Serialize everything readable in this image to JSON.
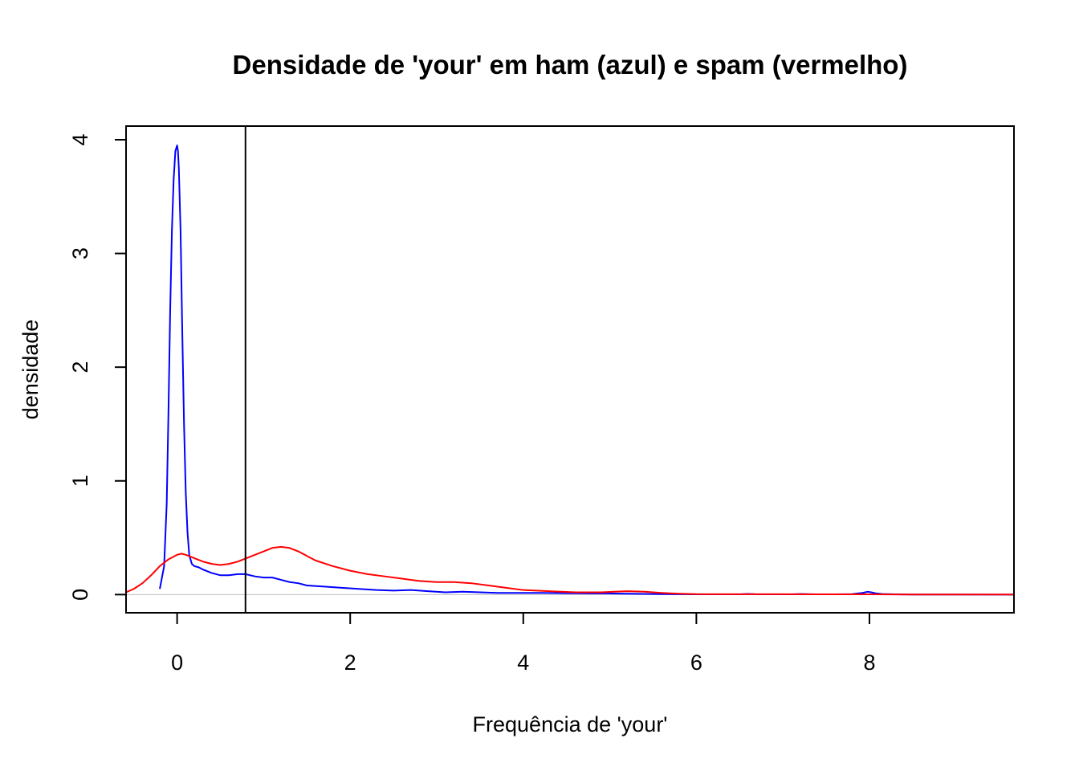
{
  "chart_data": {
    "type": "line",
    "title": "Densidade de 'your' em ham (azul) e spam (vermelho)",
    "xlabel": "Frequência de 'your'",
    "ylabel": "densidade",
    "xlim": [
      -0.59,
      9.67
    ],
    "ylim": [
      -0.16,
      4.12
    ],
    "x_ticks": [
      0,
      2,
      4,
      6,
      8
    ],
    "x_tick_labels": [
      "0",
      "2",
      "4",
      "6",
      "8"
    ],
    "y_ticks": [
      0,
      1,
      2,
      3,
      4
    ],
    "y_tick_labels": [
      "0",
      "1",
      "2",
      "3",
      "4"
    ],
    "grid": false,
    "legend": "none",
    "vline": {
      "x": 0.79,
      "color": "#000000"
    },
    "hline": {
      "y": 0,
      "color": "#bebebe"
    },
    "series": [
      {
        "color": "#0000ff",
        "x": [
          -0.2,
          -0.15,
          -0.12,
          -0.1,
          -0.08,
          -0.06,
          -0.04,
          -0.02,
          0.0,
          0.01,
          0.02,
          0.04,
          0.06,
          0.08,
          0.1,
          0.12,
          0.14,
          0.17,
          0.2,
          0.25,
          0.3,
          0.4,
          0.5,
          0.6,
          0.7,
          0.79,
          0.9,
          1.0,
          1.1,
          1.2,
          1.3,
          1.4,
          1.5,
          1.7,
          1.9,
          2.1,
          2.3,
          2.5,
          2.7,
          2.9,
          3.1,
          3.3,
          3.5,
          3.7,
          3.9,
          4.2,
          4.5,
          4.8,
          5.0,
          5.2,
          5.4,
          5.6,
          5.8,
          6.0,
          6.3,
          6.5,
          6.6,
          6.7,
          6.9,
          7.1,
          7.2,
          7.4,
          7.6,
          7.8,
          7.92,
          7.98,
          8.02,
          8.08,
          8.15,
          8.3,
          8.5,
          9.0,
          9.67
        ],
        "y": [
          0.05,
          0.25,
          0.8,
          1.6,
          2.5,
          3.2,
          3.65,
          3.9,
          3.95,
          3.9,
          3.75,
          3.2,
          2.3,
          1.5,
          0.9,
          0.55,
          0.35,
          0.27,
          0.25,
          0.24,
          0.22,
          0.19,
          0.17,
          0.17,
          0.18,
          0.18,
          0.16,
          0.15,
          0.15,
          0.13,
          0.11,
          0.1,
          0.08,
          0.07,
          0.06,
          0.05,
          0.04,
          0.035,
          0.04,
          0.03,
          0.02,
          0.025,
          0.02,
          0.015,
          0.015,
          0.015,
          0.012,
          0.01,
          0.01,
          0.008,
          0.006,
          0.004,
          0.003,
          0.002,
          0.002,
          0.002,
          0.006,
          0.002,
          0.002,
          0.002,
          0.005,
          0.002,
          0.002,
          0.004,
          0.015,
          0.025,
          0.02,
          0.01,
          0.005,
          0.002,
          0.001,
          0.001,
          0.0
        ]
      },
      {
        "color": "#ff0000",
        "x": [
          -0.59,
          -0.5,
          -0.4,
          -0.3,
          -0.2,
          -0.1,
          0.0,
          0.05,
          0.1,
          0.2,
          0.3,
          0.4,
          0.5,
          0.6,
          0.7,
          0.8,
          0.9,
          1.0,
          1.1,
          1.2,
          1.3,
          1.4,
          1.5,
          1.6,
          1.8,
          2.0,
          2.2,
          2.4,
          2.6,
          2.8,
          3.0,
          3.2,
          3.4,
          3.6,
          3.8,
          4.0,
          4.3,
          4.6,
          4.9,
          5.2,
          5.4,
          5.6,
          5.8,
          6.0,
          6.5,
          7.0,
          7.5,
          8.0,
          8.5,
          9.0,
          9.67
        ],
        "y": [
          0.02,
          0.05,
          0.1,
          0.17,
          0.25,
          0.31,
          0.35,
          0.36,
          0.35,
          0.32,
          0.29,
          0.27,
          0.26,
          0.27,
          0.29,
          0.32,
          0.35,
          0.38,
          0.41,
          0.42,
          0.41,
          0.38,
          0.34,
          0.3,
          0.25,
          0.21,
          0.18,
          0.16,
          0.14,
          0.12,
          0.11,
          0.11,
          0.1,
          0.08,
          0.06,
          0.04,
          0.03,
          0.02,
          0.02,
          0.03,
          0.025,
          0.015,
          0.008,
          0.004,
          0.003,
          0.003,
          0.002,
          0.002,
          0.001,
          0.001,
          0.001
        ]
      }
    ]
  }
}
